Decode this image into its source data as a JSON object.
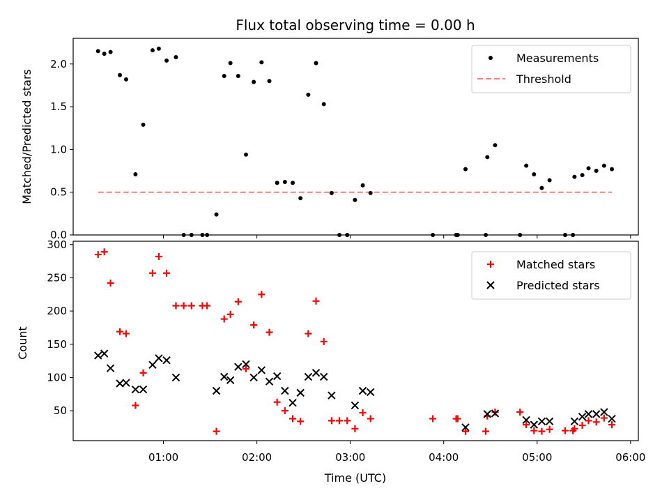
{
  "title": "Flux total observing time = 0.00 h",
  "chart_data": [
    {
      "type": "scatter",
      "ylabel": "Matched/Predicted stars",
      "xlabel": "",
      "xlim": [
        "00:02",
        "06:05"
      ],
      "ylim": [
        0,
        2.3
      ],
      "yticks": [
        "0.0",
        "0.5",
        "1.0",
        "1.5",
        "2.0"
      ],
      "legend_position": "upper right",
      "series": [
        {
          "name": "Measurements",
          "marker": "dot",
          "color": "#000000",
          "points": [
            [
              "00:18",
              2.15
            ],
            [
              "00:22",
              2.12
            ],
            [
              "00:26",
              2.14
            ],
            [
              "00:32",
              1.87
            ],
            [
              "00:36",
              1.82
            ],
            [
              "00:42",
              0.71
            ],
            [
              "00:47",
              1.29
            ],
            [
              "00:53",
              2.16
            ],
            [
              "00:57",
              2.18
            ],
            [
              "01:02",
              2.04
            ],
            [
              "01:08",
              2.08
            ],
            [
              "01:13",
              0.0
            ],
            [
              "01:18",
              0.0
            ],
            [
              "01:25",
              0.0
            ],
            [
              "01:28",
              0.0
            ],
            [
              "01:34",
              0.24
            ],
            [
              "01:39",
              1.86
            ],
            [
              "01:43",
              2.01
            ],
            [
              "01:48",
              1.86
            ],
            [
              "01:53",
              0.94
            ],
            [
              "01:58",
              1.79
            ],
            [
              "02:03",
              2.02
            ],
            [
              "02:08",
              1.8
            ],
            [
              "02:13",
              0.61
            ],
            [
              "02:18",
              0.62
            ],
            [
              "02:23",
              0.61
            ],
            [
              "02:28",
              0.43
            ],
            [
              "02:33",
              1.64
            ],
            [
              "02:38",
              2.01
            ],
            [
              "02:43",
              1.53
            ],
            [
              "02:48",
              0.49
            ],
            [
              "02:53",
              0.0
            ],
            [
              "02:58",
              0.0
            ],
            [
              "03:03",
              0.41
            ],
            [
              "03:08",
              0.58
            ],
            [
              "03:13",
              0.49
            ],
            [
              "03:53",
              0.0
            ],
            [
              "04:08",
              0.0
            ],
            [
              "04:09",
              0.0
            ],
            [
              "04:14",
              0.77
            ],
            [
              "04:27",
              0.0
            ],
            [
              "04:28",
              0.91
            ],
            [
              "04:33",
              1.05
            ],
            [
              "04:49",
              0.0
            ],
            [
              "04:53",
              0.81
            ],
            [
              "04:58",
              0.71
            ],
            [
              "05:03",
              0.55
            ],
            [
              "05:08",
              0.64
            ],
            [
              "05:18",
              0.0
            ],
            [
              "05:23",
              0.0
            ],
            [
              "05:24",
              0.68
            ],
            [
              "05:29",
              0.7
            ],
            [
              "05:33",
              0.78
            ],
            [
              "05:38",
              0.75
            ],
            [
              "05:43",
              0.81
            ],
            [
              "05:48",
              0.77
            ]
          ]
        },
        {
          "name": "Threshold",
          "style": "dashed",
          "color": "#ff8080",
          "points": [
            [
              "00:18",
              0.5
            ],
            [
              "05:48",
              0.5
            ]
          ]
        }
      ]
    },
    {
      "type": "scatter",
      "ylabel": "Count",
      "xlabel": "Time (UTC)",
      "xlim": [
        "00:02",
        "06:05"
      ],
      "ylim": [
        5,
        305
      ],
      "yticks": [
        "50",
        "100",
        "150",
        "200",
        "250",
        "300"
      ],
      "xticks": [
        "01:00",
        "02:00",
        "03:00",
        "04:00",
        "05:00",
        "06:00"
      ],
      "legend_position": "upper right",
      "series": [
        {
          "name": "Matched stars",
          "marker": "plus",
          "color": "#ff0000",
          "points": [
            [
              "00:18",
              285
            ],
            [
              "00:22",
              289
            ],
            [
              "00:26",
              242
            ],
            [
              "00:32",
              169
            ],
            [
              "00:36",
              166
            ],
            [
              "00:42",
              58
            ],
            [
              "00:47",
              107
            ],
            [
              "00:53",
              257
            ],
            [
              "00:57",
              282
            ],
            [
              "01:02",
              257
            ],
            [
              "01:08",
              208
            ],
            [
              "01:13",
              208
            ],
            [
              "01:18",
              208
            ],
            [
              "01:25",
              208
            ],
            [
              "01:28",
              208
            ],
            [
              "01:34",
              19
            ],
            [
              "01:39",
              188
            ],
            [
              "01:43",
              195
            ],
            [
              "01:48",
              214
            ],
            [
              "01:53",
              113
            ],
            [
              "01:58",
              179
            ],
            [
              "02:03",
              225
            ],
            [
              "02:08",
              168
            ],
            [
              "02:13",
              63
            ],
            [
              "02:18",
              50
            ],
            [
              "02:23",
              38
            ],
            [
              "02:28",
              34
            ],
            [
              "02:33",
              166
            ],
            [
              "02:38",
              215
            ],
            [
              "02:43",
              154
            ],
            [
              "02:48",
              35
            ],
            [
              "02:53",
              35
            ],
            [
              "02:58",
              35
            ],
            [
              "03:03",
              23
            ],
            [
              "03:08",
              47
            ],
            [
              "03:13",
              38
            ],
            [
              "03:53",
              38
            ],
            [
              "04:08",
              38
            ],
            [
              "04:09",
              38
            ],
            [
              "04:14",
              19
            ],
            [
              "04:27",
              19
            ],
            [
              "04:28",
              42
            ],
            [
              "04:33",
              48
            ],
            [
              "04:49",
              48
            ],
            [
              "04:53",
              29
            ],
            [
              "04:58",
              20
            ],
            [
              "05:03",
              19
            ],
            [
              "05:08",
              22
            ],
            [
              "05:18",
              20
            ],
            [
              "05:23",
              20
            ],
            [
              "05:24",
              23
            ],
            [
              "05:29",
              28
            ],
            [
              "05:33",
              35
            ],
            [
              "05:38",
              33
            ],
            [
              "05:43",
              39
            ],
            [
              "05:48",
              29
            ]
          ]
        },
        {
          "name": "Predicted stars",
          "marker": "x",
          "color": "#000000",
          "points": [
            [
              "00:18",
              133
            ],
            [
              "00:22",
              136
            ],
            [
              "00:26",
              114
            ],
            [
              "00:32",
              91
            ],
            [
              "00:36",
              92
            ],
            [
              "00:42",
              82
            ],
            [
              "00:47",
              82
            ],
            [
              "00:53",
              119
            ],
            [
              "00:57",
              129
            ],
            [
              "01:02",
              126
            ],
            [
              "01:08",
              100
            ],
            [
              "01:34",
              80
            ],
            [
              "01:39",
              101
            ],
            [
              "01:43",
              96
            ],
            [
              "01:48",
              116
            ],
            [
              "01:53",
              120
            ],
            [
              "01:58",
              100
            ],
            [
              "02:03",
              111
            ],
            [
              "02:08",
              94
            ],
            [
              "02:13",
              102
            ],
            [
              "02:18",
              80
            ],
            [
              "02:23",
              62
            ],
            [
              "02:28",
              77
            ],
            [
              "02:33",
              101
            ],
            [
              "02:38",
              107
            ],
            [
              "02:43",
              101
            ],
            [
              "02:48",
              73
            ],
            [
              "03:03",
              58
            ],
            [
              "03:08",
              80
            ],
            [
              "03:13",
              78
            ],
            [
              "04:14",
              25
            ],
            [
              "04:28",
              45
            ],
            [
              "04:33",
              46
            ],
            [
              "04:53",
              36
            ],
            [
              "04:58",
              29
            ],
            [
              "05:03",
              34
            ],
            [
              "05:08",
              34
            ],
            [
              "05:24",
              34
            ],
            [
              "05:29",
              41
            ],
            [
              "05:33",
              45
            ],
            [
              "05:38",
              45
            ],
            [
              "05:43",
              48
            ],
            [
              "05:48",
              38
            ]
          ]
        }
      ]
    }
  ]
}
